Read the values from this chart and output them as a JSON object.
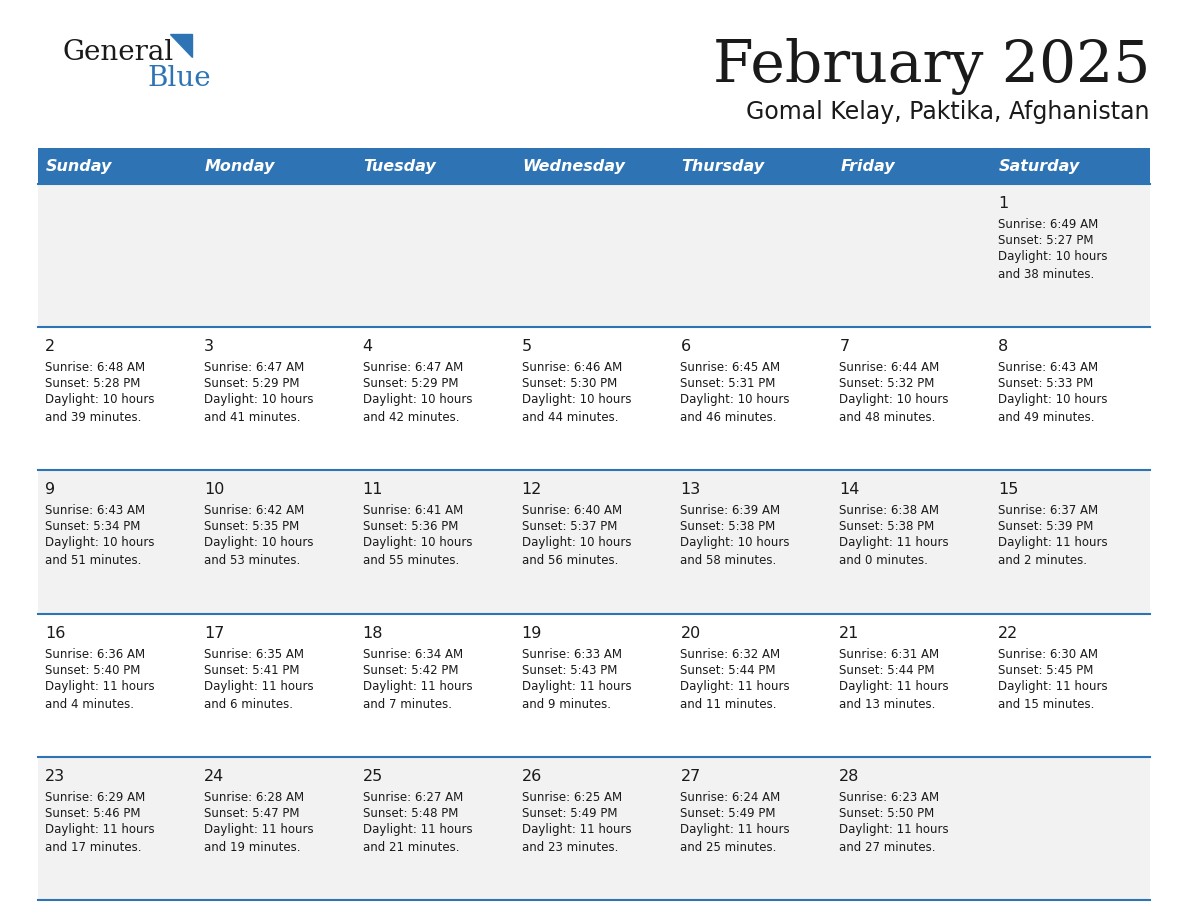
{
  "title": "February 2025",
  "subtitle": "Gomal Kelay, Paktika, Afghanistan",
  "header_bg": "#2E74B5",
  "header_text_color": "#FFFFFF",
  "cell_bg_odd": "#F2F2F2",
  "cell_bg_even": "#FFFFFF",
  "separator_color": "#2E74B5",
  "days_of_week": [
    "Sunday",
    "Monday",
    "Tuesday",
    "Wednesday",
    "Thursday",
    "Friday",
    "Saturday"
  ],
  "calendar_data": [
    [
      {
        "day": "",
        "sunrise": "",
        "sunset": "",
        "daylight": ""
      },
      {
        "day": "",
        "sunrise": "",
        "sunset": "",
        "daylight": ""
      },
      {
        "day": "",
        "sunrise": "",
        "sunset": "",
        "daylight": ""
      },
      {
        "day": "",
        "sunrise": "",
        "sunset": "",
        "daylight": ""
      },
      {
        "day": "",
        "sunrise": "",
        "sunset": "",
        "daylight": ""
      },
      {
        "day": "",
        "sunrise": "",
        "sunset": "",
        "daylight": ""
      },
      {
        "day": "1",
        "sunrise": "Sunrise: 6:49 AM",
        "sunset": "Sunset: 5:27 PM",
        "daylight": "Daylight: 10 hours\nand 38 minutes."
      }
    ],
    [
      {
        "day": "2",
        "sunrise": "Sunrise: 6:48 AM",
        "sunset": "Sunset: 5:28 PM",
        "daylight": "Daylight: 10 hours\nand 39 minutes."
      },
      {
        "day": "3",
        "sunrise": "Sunrise: 6:47 AM",
        "sunset": "Sunset: 5:29 PM",
        "daylight": "Daylight: 10 hours\nand 41 minutes."
      },
      {
        "day": "4",
        "sunrise": "Sunrise: 6:47 AM",
        "sunset": "Sunset: 5:29 PM",
        "daylight": "Daylight: 10 hours\nand 42 minutes."
      },
      {
        "day": "5",
        "sunrise": "Sunrise: 6:46 AM",
        "sunset": "Sunset: 5:30 PM",
        "daylight": "Daylight: 10 hours\nand 44 minutes."
      },
      {
        "day": "6",
        "sunrise": "Sunrise: 6:45 AM",
        "sunset": "Sunset: 5:31 PM",
        "daylight": "Daylight: 10 hours\nand 46 minutes."
      },
      {
        "day": "7",
        "sunrise": "Sunrise: 6:44 AM",
        "sunset": "Sunset: 5:32 PM",
        "daylight": "Daylight: 10 hours\nand 48 minutes."
      },
      {
        "day": "8",
        "sunrise": "Sunrise: 6:43 AM",
        "sunset": "Sunset: 5:33 PM",
        "daylight": "Daylight: 10 hours\nand 49 minutes."
      }
    ],
    [
      {
        "day": "9",
        "sunrise": "Sunrise: 6:43 AM",
        "sunset": "Sunset: 5:34 PM",
        "daylight": "Daylight: 10 hours\nand 51 minutes."
      },
      {
        "day": "10",
        "sunrise": "Sunrise: 6:42 AM",
        "sunset": "Sunset: 5:35 PM",
        "daylight": "Daylight: 10 hours\nand 53 minutes."
      },
      {
        "day": "11",
        "sunrise": "Sunrise: 6:41 AM",
        "sunset": "Sunset: 5:36 PM",
        "daylight": "Daylight: 10 hours\nand 55 minutes."
      },
      {
        "day": "12",
        "sunrise": "Sunrise: 6:40 AM",
        "sunset": "Sunset: 5:37 PM",
        "daylight": "Daylight: 10 hours\nand 56 minutes."
      },
      {
        "day": "13",
        "sunrise": "Sunrise: 6:39 AM",
        "sunset": "Sunset: 5:38 PM",
        "daylight": "Daylight: 10 hours\nand 58 minutes."
      },
      {
        "day": "14",
        "sunrise": "Sunrise: 6:38 AM",
        "sunset": "Sunset: 5:38 PM",
        "daylight": "Daylight: 11 hours\nand 0 minutes."
      },
      {
        "day": "15",
        "sunrise": "Sunrise: 6:37 AM",
        "sunset": "Sunset: 5:39 PM",
        "daylight": "Daylight: 11 hours\nand 2 minutes."
      }
    ],
    [
      {
        "day": "16",
        "sunrise": "Sunrise: 6:36 AM",
        "sunset": "Sunset: 5:40 PM",
        "daylight": "Daylight: 11 hours\nand 4 minutes."
      },
      {
        "day": "17",
        "sunrise": "Sunrise: 6:35 AM",
        "sunset": "Sunset: 5:41 PM",
        "daylight": "Daylight: 11 hours\nand 6 minutes."
      },
      {
        "day": "18",
        "sunrise": "Sunrise: 6:34 AM",
        "sunset": "Sunset: 5:42 PM",
        "daylight": "Daylight: 11 hours\nand 7 minutes."
      },
      {
        "day": "19",
        "sunrise": "Sunrise: 6:33 AM",
        "sunset": "Sunset: 5:43 PM",
        "daylight": "Daylight: 11 hours\nand 9 minutes."
      },
      {
        "day": "20",
        "sunrise": "Sunrise: 6:32 AM",
        "sunset": "Sunset: 5:44 PM",
        "daylight": "Daylight: 11 hours\nand 11 minutes."
      },
      {
        "day": "21",
        "sunrise": "Sunrise: 6:31 AM",
        "sunset": "Sunset: 5:44 PM",
        "daylight": "Daylight: 11 hours\nand 13 minutes."
      },
      {
        "day": "22",
        "sunrise": "Sunrise: 6:30 AM",
        "sunset": "Sunset: 5:45 PM",
        "daylight": "Daylight: 11 hours\nand 15 minutes."
      }
    ],
    [
      {
        "day": "23",
        "sunrise": "Sunrise: 6:29 AM",
        "sunset": "Sunset: 5:46 PM",
        "daylight": "Daylight: 11 hours\nand 17 minutes."
      },
      {
        "day": "24",
        "sunrise": "Sunrise: 6:28 AM",
        "sunset": "Sunset: 5:47 PM",
        "daylight": "Daylight: 11 hours\nand 19 minutes."
      },
      {
        "day": "25",
        "sunrise": "Sunrise: 6:27 AM",
        "sunset": "Sunset: 5:48 PM",
        "daylight": "Daylight: 11 hours\nand 21 minutes."
      },
      {
        "day": "26",
        "sunrise": "Sunrise: 6:25 AM",
        "sunset": "Sunset: 5:49 PM",
        "daylight": "Daylight: 11 hours\nand 23 minutes."
      },
      {
        "day": "27",
        "sunrise": "Sunrise: 6:24 AM",
        "sunset": "Sunset: 5:49 PM",
        "daylight": "Daylight: 11 hours\nand 25 minutes."
      },
      {
        "day": "28",
        "sunrise": "Sunrise: 6:23 AM",
        "sunset": "Sunset: 5:50 PM",
        "daylight": "Daylight: 11 hours\nand 27 minutes."
      },
      {
        "day": "",
        "sunrise": "",
        "sunset": "",
        "daylight": ""
      }
    ]
  ],
  "logo_text_general": "General",
  "logo_text_blue": "Blue",
  "logo_color_general": "#1a1a1a",
  "logo_color_blue": "#2E74B5",
  "logo_triangle_color": "#2E74B5",
  "fig_width": 11.88,
  "fig_height": 9.18,
  "dpi": 100
}
